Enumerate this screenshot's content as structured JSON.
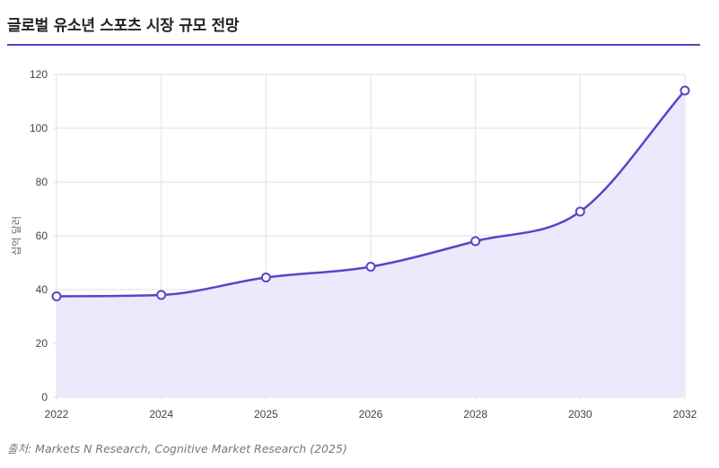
{
  "header": {
    "title": "글로벌 유소년 스포츠 시장 규모 전망"
  },
  "chart_data": {
    "type": "area",
    "x": [
      "2022",
      "2024",
      "2025",
      "2026",
      "2028",
      "2030",
      "2032"
    ],
    "series": [
      {
        "values": [
          37.5,
          38,
          44.5,
          48.5,
          58,
          69,
          114
        ]
      }
    ],
    "title": "",
    "xlabel": "",
    "ylabel": "십억 달러",
    "ylim": [
      0,
      120
    ],
    "yticks": [
      "0",
      "20",
      "40",
      "60",
      "80",
      "100",
      "120"
    ],
    "grid": true,
    "legend": "none",
    "line_color": "#5546c8",
    "fill_color": "#ebe9fc",
    "grid_color": "#e2e2e2"
  },
  "footer": {
    "source": "출처: Markets N Research, Cognitive Market Research (2025)"
  }
}
